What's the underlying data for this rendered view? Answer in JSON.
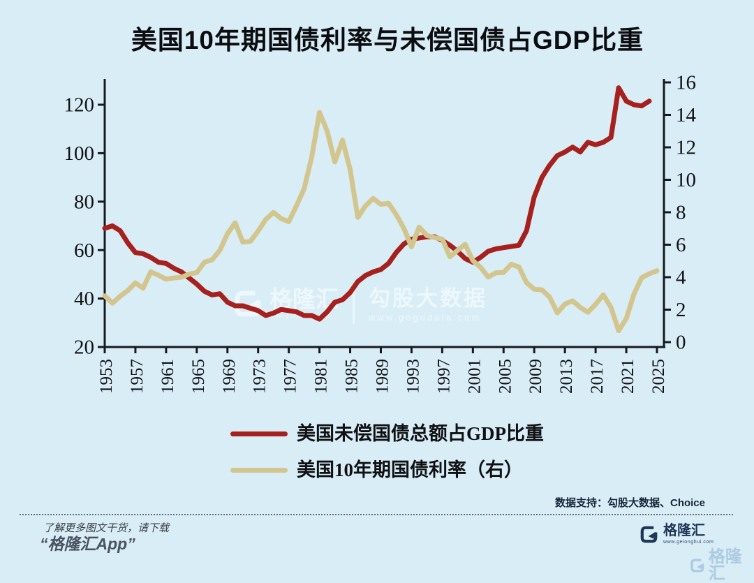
{
  "title": "美国10年期国债利率与未偿国债占GDP比重",
  "colors": {
    "background": "#d9edf6",
    "axis": "#15191e",
    "debt_line": "#a6201e",
    "yield_line": "#d3c58e"
  },
  "watermark": {
    "brand": "格隆汇",
    "brand_url": "www.gelonghui.com",
    "product": "勾股大数据",
    "url": "www.gogudata.com"
  },
  "legend": [
    {
      "label": "美国未偿国债总额占GDP比重",
      "color": "#a6201e"
    },
    {
      "label": "美国10年期国债利率（右）",
      "color": "#d3c58e"
    }
  ],
  "footer": {
    "data_support": "数据支持：勾股大数据、Choice",
    "promo_line1": "了解更多图文干货，请下载",
    "promo_line2": "“格隆汇App”",
    "logo_text": "格隆汇",
    "logo_url": "www.gelonghui.com"
  },
  "chart_data": {
    "type": "line",
    "title": "美国10年期国债利率与未偿国债占GDP比重",
    "x_ticks": [
      1953,
      1957,
      1961,
      1965,
      1969,
      1973,
      1977,
      1981,
      1985,
      1989,
      1993,
      1997,
      2001,
      2005,
      2009,
      2013,
      2017,
      2021,
      2025
    ],
    "left_axis": {
      "ticks": [
        20,
        40,
        60,
        80,
        100,
        120
      ],
      "min": 20,
      "max": 130,
      "unit": "%GDP"
    },
    "right_axis": {
      "ticks": [
        0,
        2,
        4,
        6,
        8,
        10,
        12,
        14,
        16
      ],
      "min": 0,
      "max": 16,
      "unit": "%"
    },
    "grid": false,
    "legend_position": "bottom-center",
    "series": [
      {
        "name": "美国未偿国债总额占GDP比重",
        "axis": "left",
        "color": "#a6201e",
        "start_year": 1953,
        "values": [
          69,
          70,
          68,
          63,
          59,
          58.5,
          57,
          55,
          54.5,
          52.5,
          51,
          48.5,
          46,
          43,
          41.5,
          42,
          38.5,
          37,
          37,
          36,
          35,
          33,
          34,
          35.5,
          35,
          34.5,
          33,
          33,
          31.5,
          34.5,
          38.5,
          39.5,
          42.5,
          47,
          49.5,
          51,
          52,
          54.5,
          59,
          62.5,
          64.5,
          65,
          65.5,
          65.5,
          64,
          62,
          59.5,
          56.5,
          55,
          57,
          59.5,
          60.5,
          61,
          61.5,
          62,
          68,
          82,
          90,
          95,
          99,
          100.5,
          102.5,
          100.5,
          104.5,
          103.5,
          104.5,
          106.5,
          127,
          121.5,
          120,
          119.5,
          121.5
        ]
      },
      {
        "name": "美国10年期国债利率（右）",
        "axis": "right",
        "color": "#d3c58e",
        "start_year": 1953,
        "values": [
          2.85,
          2.4,
          2.82,
          3.18,
          3.65,
          3.32,
          4.33,
          4.12,
          3.88,
          3.95,
          4.0,
          4.19,
          4.28,
          4.92,
          5.07,
          5.65,
          6.67,
          7.35,
          6.16,
          6.21,
          6.84,
          7.56,
          7.99,
          7.61,
          7.42,
          8.41,
          9.44,
          11.43,
          14.15,
          13.0,
          11.1,
          12.44,
          10.62,
          7.68,
          8.39,
          8.85,
          8.49,
          8.55,
          7.86,
          7.01,
          5.87,
          7.09,
          6.57,
          6.44,
          6.35,
          5.26,
          5.65,
          6.03,
          5.02,
          4.61,
          4.01,
          4.27,
          4.29,
          4.8,
          4.63,
          3.66,
          3.26,
          3.22,
          2.78,
          1.8,
          2.35,
          2.54,
          2.14,
          1.84,
          2.33,
          2.91,
          2.14,
          0.7,
          1.45,
          2.95,
          3.96,
          4.21,
          4.4
        ]
      }
    ]
  }
}
